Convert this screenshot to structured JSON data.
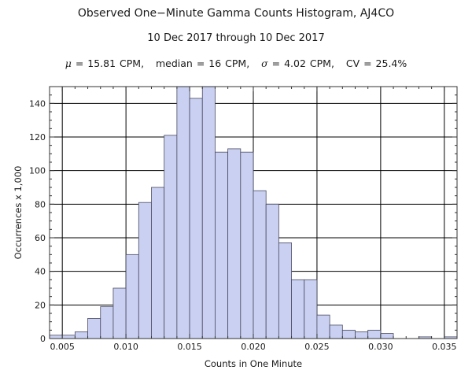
{
  "chart_data": {
    "type": "bar",
    "title": "Observed One−Minute Gamma Counts Histogram, AJ4CO",
    "subtitle": "10 Dec 2017 through 10 Dec 2017",
    "stats": {
      "mean_symbol": "μ",
      "mean": "15.81 CPM",
      "median_label": "median",
      "median": "16 CPM",
      "sigma_symbol": "σ",
      "sigma": "4.02 CPM",
      "cv_label": "CV",
      "cv": "25.4%"
    },
    "xlabel": "Counts in One Minute",
    "ylabel": "Occurrences x 1,000",
    "xlim": [
      0.004,
      0.036
    ],
    "ylim": [
      0,
      150
    ],
    "xticks": [
      0.005,
      0.01,
      0.015,
      0.02,
      0.025,
      0.03,
      0.035
    ],
    "xtick_labels": [
      "0.005",
      "0.010",
      "0.015",
      "0.020",
      "0.025",
      "0.030",
      "0.035"
    ],
    "yticks": [
      0,
      20,
      40,
      60,
      80,
      100,
      120,
      140
    ],
    "ytick_labels": [
      "0",
      "20",
      "40",
      "60",
      "80",
      "100",
      "120",
      "140"
    ],
    "grid": true,
    "bin_width": 0.001,
    "bins": [
      {
        "x0": 0.004,
        "value": 2
      },
      {
        "x0": 0.005,
        "value": 2
      },
      {
        "x0": 0.006,
        "value": 4
      },
      {
        "x0": 0.007,
        "value": 12
      },
      {
        "x0": 0.008,
        "value": 19
      },
      {
        "x0": 0.009,
        "value": 30
      },
      {
        "x0": 0.01,
        "value": 50
      },
      {
        "x0": 0.011,
        "value": 81
      },
      {
        "x0": 0.012,
        "value": 90
      },
      {
        "x0": 0.013,
        "value": 121
      },
      {
        "x0": 0.014,
        "value": 150
      },
      {
        "x0": 0.015,
        "value": 143
      },
      {
        "x0": 0.016,
        "value": 150
      },
      {
        "x0": 0.017,
        "value": 111
      },
      {
        "x0": 0.018,
        "value": 113
      },
      {
        "x0": 0.019,
        "value": 111
      },
      {
        "x0": 0.02,
        "value": 88
      },
      {
        "x0": 0.021,
        "value": 80
      },
      {
        "x0": 0.022,
        "value": 57
      },
      {
        "x0": 0.023,
        "value": 35
      },
      {
        "x0": 0.024,
        "value": 35
      },
      {
        "x0": 0.025,
        "value": 14
      },
      {
        "x0": 0.026,
        "value": 8
      },
      {
        "x0": 0.027,
        "value": 5
      },
      {
        "x0": 0.028,
        "value": 4
      },
      {
        "x0": 0.029,
        "value": 5
      },
      {
        "x0": 0.03,
        "value": 3
      },
      {
        "x0": 0.031,
        "value": 0
      },
      {
        "x0": 0.032,
        "value": 0
      },
      {
        "x0": 0.033,
        "value": 1
      },
      {
        "x0": 0.034,
        "value": 0
      },
      {
        "x0": 0.035,
        "value": 1
      }
    ],
    "colors": {
      "bar_fill": "#c9d0f2",
      "bar_stroke": "#4a4a5e",
      "grid": "#000000",
      "frame": "#333333"
    }
  }
}
